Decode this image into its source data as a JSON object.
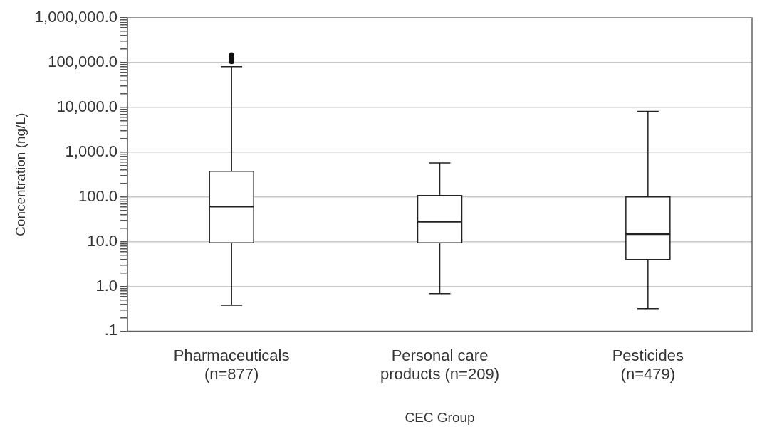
{
  "chart_data": {
    "type": "box",
    "xlabel": "CEC Group",
    "ylabel": "Concentration (ng/L)",
    "categories": [
      "Pharmaceuticals\n(n=877)",
      "Personal care\nproducts (n=209)",
      "Pesticides\n(n=479)"
    ],
    "boxes": [
      {
        "low": 0.38,
        "q1": 9.4,
        "median": 61,
        "q3": 372,
        "high": 81000,
        "outliers": [
          105000,
          120000,
          135000,
          150000
        ]
      },
      {
        "low": 0.69,
        "q1": 9.4,
        "median": 28,
        "q3": 108,
        "high": 575
      },
      {
        "low": 0.32,
        "q1": 4.0,
        "median": 14.8,
        "q3": 100,
        "high": 8200
      }
    ],
    "log": true,
    "ylim": [
      0.1,
      1000000
    ],
    "grid": "y",
    "yticks": [
      {
        "value": 0.1,
        "label": ".1"
      },
      {
        "value": 0.2,
        "label": null
      },
      {
        "value": 0.3,
        "label": null
      },
      {
        "value": 0.4,
        "label": null
      },
      {
        "value": 0.5,
        "label": null
      },
      {
        "value": 0.6,
        "label": null
      },
      {
        "value": 0.7,
        "label": null
      },
      {
        "value": 0.8,
        "label": null
      },
      {
        "value": 0.9,
        "label": null
      },
      {
        "value": 1,
        "label": "1.0"
      },
      {
        "value": 2,
        "label": null
      },
      {
        "value": 3,
        "label": null
      },
      {
        "value": 4,
        "label": null
      },
      {
        "value": 5,
        "label": null
      },
      {
        "value": 6,
        "label": null
      },
      {
        "value": 7,
        "label": null
      },
      {
        "value": 8,
        "label": null
      },
      {
        "value": 9,
        "label": null
      },
      {
        "value": 10,
        "label": "10.0"
      },
      {
        "value": 20,
        "label": null
      },
      {
        "value": 30,
        "label": null
      },
      {
        "value": 40,
        "label": null
      },
      {
        "value": 50,
        "label": null
      },
      {
        "value": 60,
        "label": null
      },
      {
        "value": 70,
        "label": null
      },
      {
        "value": 80,
        "label": null
      },
      {
        "value": 90,
        "label": null
      },
      {
        "value": 100,
        "label": "100.0"
      },
      {
        "value": 200,
        "label": null
      },
      {
        "value": 300,
        "label": null
      },
      {
        "value": 400,
        "label": null
      },
      {
        "value": 500,
        "label": null
      },
      {
        "value": 600,
        "label": null
      },
      {
        "value": 700,
        "label": null
      },
      {
        "value": 800,
        "label": null
      },
      {
        "value": 900,
        "label": null
      },
      {
        "value": 1000,
        "label": "1,000.0"
      },
      {
        "value": 2000,
        "label": null
      },
      {
        "value": 3000,
        "label": null
      },
      {
        "value": 4000,
        "label": null
      },
      {
        "value": 5000,
        "label": null
      },
      {
        "value": 6000,
        "label": null
      },
      {
        "value": 7000,
        "label": null
      },
      {
        "value": 8000,
        "label": null
      },
      {
        "value": 9000,
        "label": null
      },
      {
        "value": 10000,
        "label": "10,000.0"
      },
      {
        "value": 20000,
        "label": null
      },
      {
        "value": 30000,
        "label": null
      },
      {
        "value": 40000,
        "label": null
      },
      {
        "value": 50000,
        "label": null
      },
      {
        "value": 60000,
        "label": null
      },
      {
        "value": 70000,
        "label": null
      },
      {
        "value": 80000,
        "label": null
      },
      {
        "value": 90000,
        "label": null
      },
      {
        "value": 100000,
        "label": "100,000.0"
      },
      {
        "value": 200000,
        "label": null
      },
      {
        "value": 300000,
        "label": null
      },
      {
        "value": 400000,
        "label": null
      },
      {
        "value": 500000,
        "label": null
      },
      {
        "value": 600000,
        "label": null
      },
      {
        "value": 700000,
        "label": null
      },
      {
        "value": 800000,
        "label": null
      },
      {
        "value": 900000,
        "label": null
      },
      {
        "value": 1000000,
        "label": "1,000,000.0"
      }
    ]
  }
}
